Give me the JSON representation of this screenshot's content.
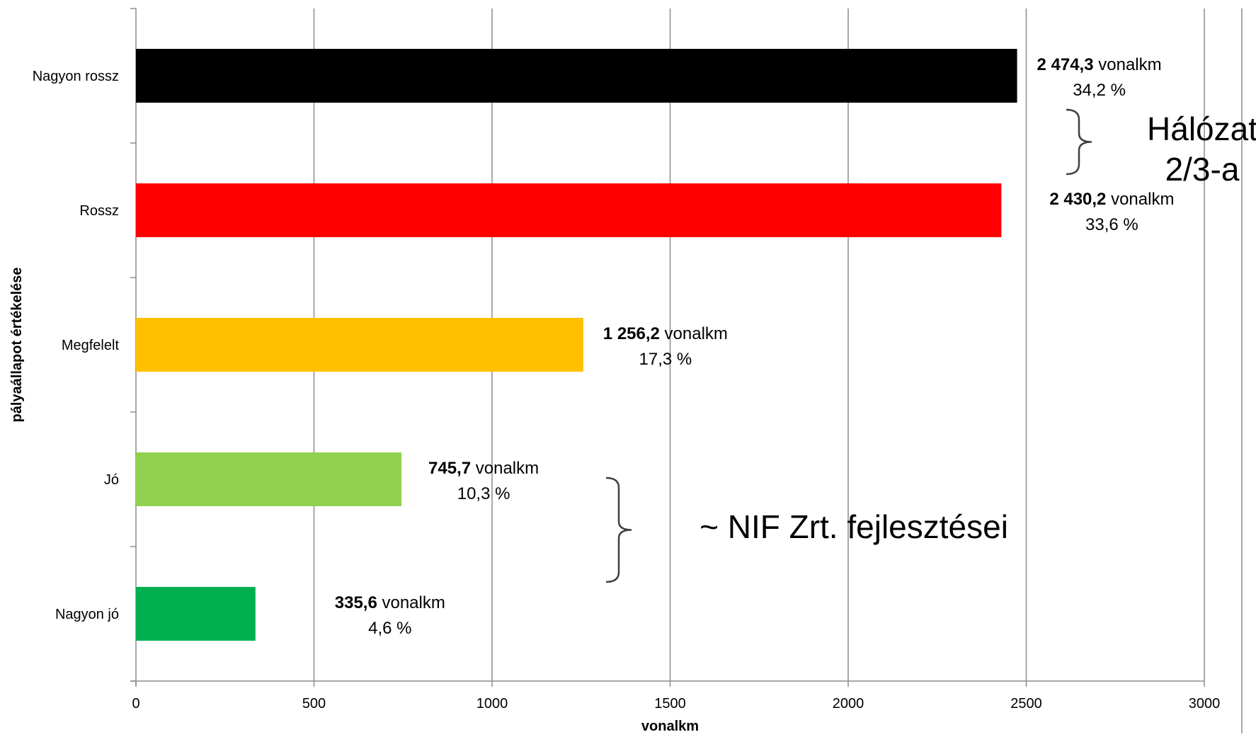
{
  "chart_data": {
    "type": "bar",
    "orientation": "horizontal",
    "categories": [
      "Nagyon rossz",
      "Rossz",
      "Megfelelt",
      "Jó",
      "Nagyon jó"
    ],
    "values": [
      2474.3,
      2430.2,
      1256.2,
      745.7,
      335.6
    ],
    "colors": [
      "#000000",
      "#ff0000",
      "#ffc000",
      "#92d050",
      "#00b050"
    ],
    "data_labels": [
      {
        "value_text": "2 474,3",
        "unit_text": " vonalkm",
        "percent_text": "34,2 %"
      },
      {
        "value_text": "2 430,2",
        "unit_text": " vonalkm",
        "percent_text": "33,6 %"
      },
      {
        "value_text": "1 256,2",
        "unit_text": " vonalkm",
        "percent_text": "17,3 %"
      },
      {
        "value_text": "745,7",
        "unit_text": " vonalkm",
        "percent_text": "10,3 %"
      },
      {
        "value_text": "335,6",
        "unit_text": " vonalkm",
        "percent_text": "4,6 %"
      }
    ],
    "xlabel": "vonalkm",
    "ylabel": "pályaállapot értékelése",
    "xlim": [
      0,
      3000
    ],
    "xticks": [
      0,
      500,
      1000,
      1500,
      2000,
      2500,
      3000
    ],
    "xtick_labels": [
      "0",
      "500",
      "1000",
      "1500",
      "2000",
      "2500",
      "3000"
    ],
    "grid": true,
    "annotations": [
      {
        "lines": [
          "Hálózat",
          "2/3-a"
        ],
        "brackets": [
          "Nagyon rossz",
          "Rossz"
        ]
      },
      {
        "lines": [
          "~ NIF Zrt. fejlesztései"
        ],
        "brackets": [
          "Jó",
          "Nagyon jó"
        ]
      }
    ]
  }
}
